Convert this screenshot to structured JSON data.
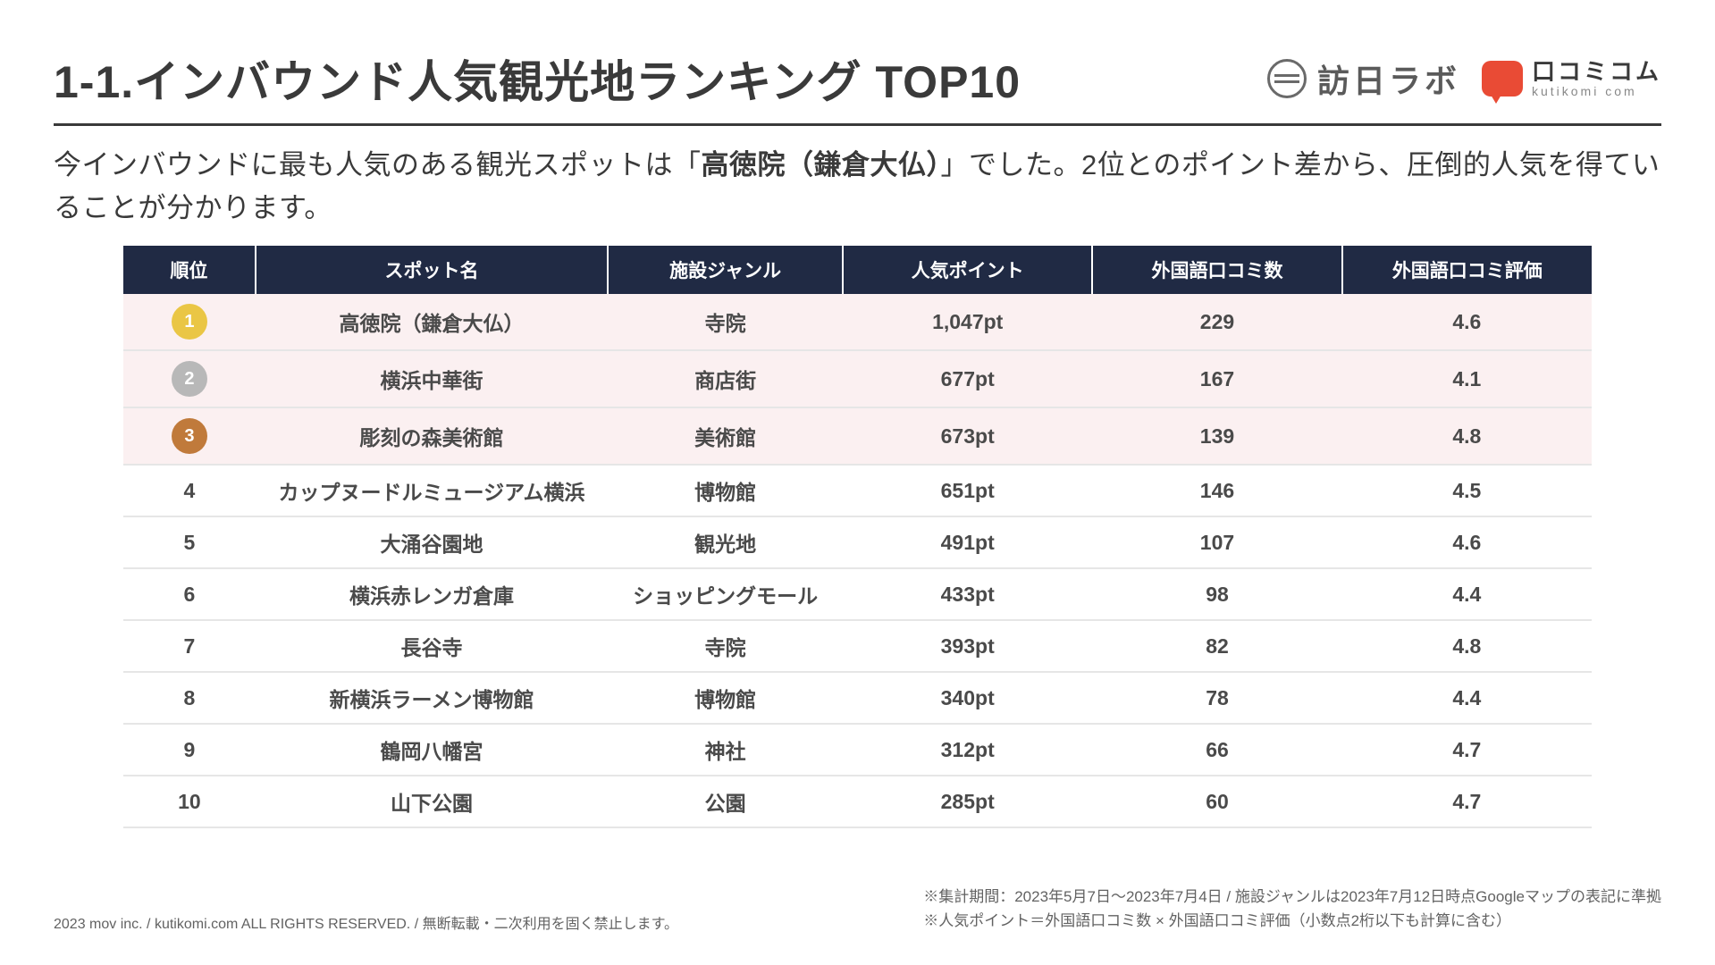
{
  "title": "1-1.インバウンド人気観光地ランキング TOP10",
  "logos": {
    "honichi": "訪日ラボ",
    "kutikomi_jp": "口コミコム",
    "kutikomi_en": "kutikomi com"
  },
  "lead_pre": "今インバウンドに最も人気のある観光スポットは「",
  "lead_bold": "高徳院（鎌倉大仏）",
  "lead_post": "」でした。2位とのポイント差から、圧倒的人気を得ていることが分かります。",
  "columns": {
    "rank": "順位",
    "spot": "スポット名",
    "genre": "施設ジャンル",
    "points": "人気ポイント",
    "reviews": "外国語口コミ数",
    "score": "外国語口コミ評価"
  },
  "badge_colors": {
    "gold": "#eac645",
    "silver": "#b8b8b8",
    "bronze": "#c07a3b"
  },
  "header_bg": "#202a44",
  "highlight_bg": "#fbf0f1",
  "rows": [
    {
      "rank": "1",
      "spot": "高徳院（鎌倉大仏）",
      "genre": "寺院",
      "points": "1,047pt",
      "reviews": "229",
      "score": "4.6",
      "badge": "gold",
      "highlight": true
    },
    {
      "rank": "2",
      "spot": "横浜中華街",
      "genre": "商店街",
      "points": "677pt",
      "reviews": "167",
      "score": "4.1",
      "badge": "silver",
      "highlight": true
    },
    {
      "rank": "3",
      "spot": "彫刻の森美術館",
      "genre": "美術館",
      "points": "673pt",
      "reviews": "139",
      "score": "4.8",
      "badge": "bronze",
      "highlight": true
    },
    {
      "rank": "4",
      "spot": "カップヌードルミュージアム横浜",
      "genre": "博物館",
      "points": "651pt",
      "reviews": "146",
      "score": "4.5"
    },
    {
      "rank": "5",
      "spot": "大涌谷園地",
      "genre": "観光地",
      "points": "491pt",
      "reviews": "107",
      "score": "4.6"
    },
    {
      "rank": "6",
      "spot": "横浜赤レンガ倉庫",
      "genre": "ショッピングモール",
      "points": "433pt",
      "reviews": "98",
      "score": "4.4"
    },
    {
      "rank": "7",
      "spot": "長谷寺",
      "genre": "寺院",
      "points": "393pt",
      "reviews": "82",
      "score": "4.8"
    },
    {
      "rank": "8",
      "spot": "新横浜ラーメン博物館",
      "genre": "博物館",
      "points": "340pt",
      "reviews": "78",
      "score": "4.4"
    },
    {
      "rank": "9",
      "spot": "鶴岡八幡宮",
      "genre": "神社",
      "points": "312pt",
      "reviews": "66",
      "score": "4.7"
    },
    {
      "rank": "10",
      "spot": "山下公園",
      "genre": "公園",
      "points": "285pt",
      "reviews": "60",
      "score": "4.7"
    }
  ],
  "footer": {
    "copyright": "2023 mov inc. / kutikomi.com ALL RIGHTS RESERVED. / 無断転載・二次利用を固く禁止します。",
    "note1": "※集計期間：2023年5月7日〜2023年7月4日 / 施設ジャンルは2023年7月12日時点Googleマップの表記に準拠",
    "note2": "※人気ポイント＝外国語口コミ数 × 外国語口コミ評価（小数点2桁以下も計算に含む）"
  }
}
